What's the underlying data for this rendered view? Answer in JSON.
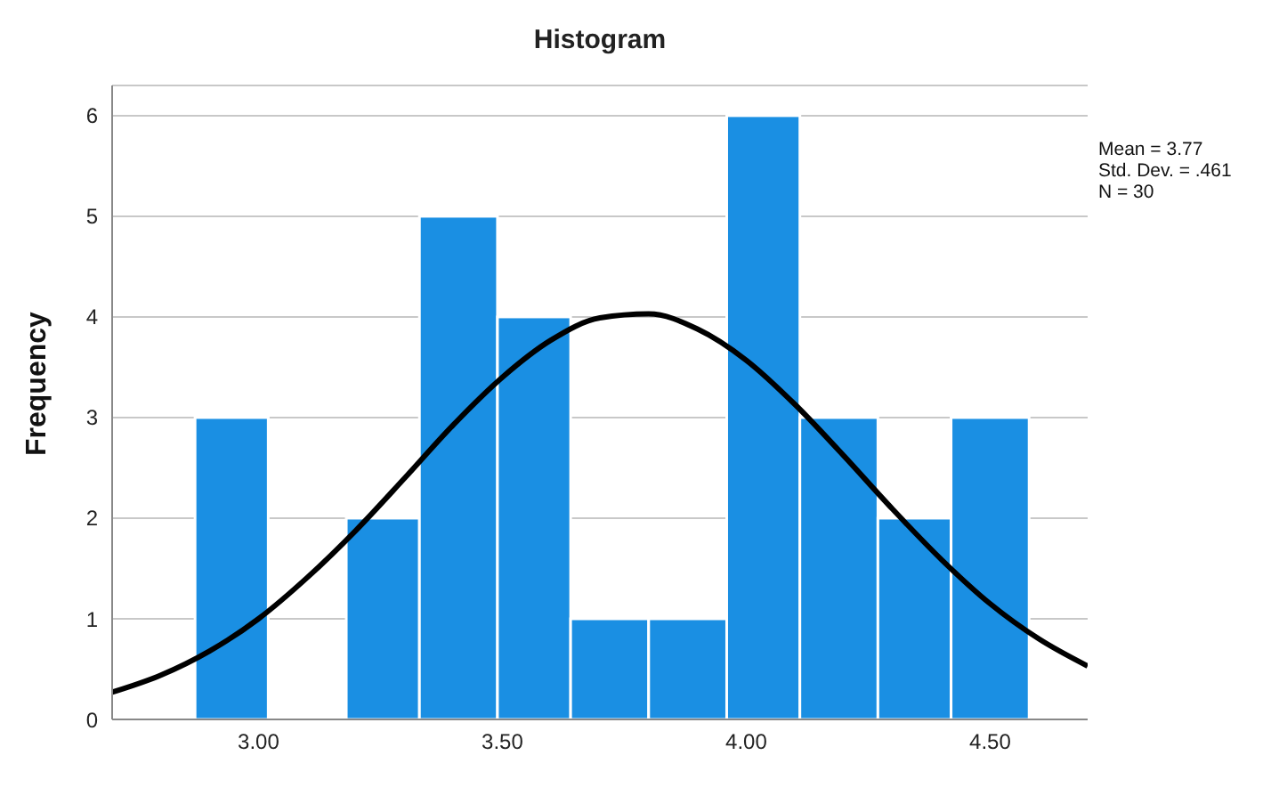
{
  "chart_data": {
    "type": "histogram",
    "title": "Histogram",
    "ylabel": "Frequency",
    "bins": [
      2.87,
      3.02,
      3.18,
      3.33,
      3.49,
      3.64,
      3.8,
      3.96,
      4.11,
      4.27,
      4.42,
      4.58
    ],
    "values": [
      3,
      0,
      2,
      5,
      4,
      1,
      1,
      6,
      3,
      2,
      3
    ],
    "color": "#1a8fe3",
    "series": [
      {
        "type": "line",
        "color": "#000000",
        "x": [
          2.7,
          2.8,
          2.9,
          3.0,
          3.1,
          3.2,
          3.3,
          3.4,
          3.5,
          3.6,
          3.7,
          3.8,
          3.9,
          4.0,
          4.1,
          4.2,
          4.3,
          4.4,
          4.5,
          4.6,
          4.7
        ],
        "values": [
          0.27,
          0.44,
          0.68,
          1.0,
          1.41,
          1.88,
          2.4,
          2.93,
          3.4,
          3.77,
          3.99,
          4.03,
          3.88,
          3.57,
          3.13,
          2.62,
          2.09,
          1.59,
          1.15,
          0.8,
          0.53
        ]
      }
    ],
    "xlim": [
      2.7,
      4.7
    ],
    "xticks": [
      {
        "value": 3,
        "label": "3.00"
      },
      {
        "value": 3.5,
        "label": "3.50"
      },
      {
        "value": 4,
        "label": "4.00"
      },
      {
        "value": 4.5,
        "label": "4.50"
      }
    ],
    "ylim": [
      0,
      6.3
    ],
    "yticks": [
      0,
      1,
      2,
      3,
      4,
      5,
      6
    ],
    "grid": "y",
    "marker": "none",
    "annotations": [
      "Mean = 3.77",
      "Std. Dev. = .461",
      "N = 30"
    ]
  }
}
